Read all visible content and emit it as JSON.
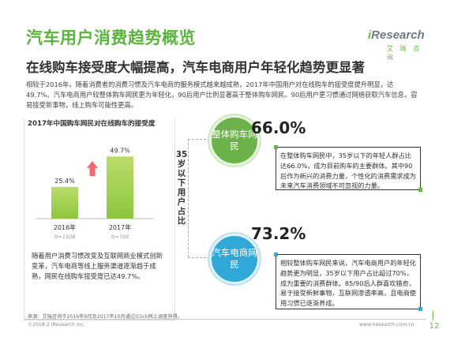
{
  "page_title": "汽车用户消费趋势概览",
  "logo": {
    "word_prefix": "i",
    "word_rest": "Research",
    "sub": "艾 瑞 咨 询"
  },
  "subtitle": "在线购车接受度大幅提高，汽车电商用户年轻化趋势更显著",
  "intro": "相较于2016年，随着消费者的消费习惯及汽车电商的服务模式越来越成熟，2017年中国用户对在线购车的接受度提升明显，达49.7%。汽车电商用户较整体购车网民更为年轻化，90后用户比例显著高于整体购车网民。90后用户更习惯通过网络获取汽车信息，容易接受新事物，线上购车可能性更高。",
  "chart_data": {
    "type": "bar",
    "title": "2017年中国购车网民对在线购车的接受度",
    "categories": [
      "2016年",
      "2017年"
    ],
    "values": [
      25.4,
      49.7
    ],
    "value_labels": [
      "25.4%",
      "49.7%"
    ],
    "sample_sizes": [
      "N=1508",
      "N=700"
    ],
    "ylim": [
      0,
      60
    ],
    "xlabel": "",
    "ylabel": "",
    "colors": {
      "bar_top": "#b9dc6a",
      "bar_bottom": "#8dc63f",
      "arrow": "#f06a6a",
      "axis": "#bbbbbb"
    }
  },
  "vertical_tag": "35岁以下用户占比",
  "chart_note": "随着用户消费习惯改变及互联网商业模式创新变革，汽车电商等线上服务渠道逐渐趋于成熟，网民在线购车接受度已达49.7%。",
  "segments": [
    {
      "circle_label": "整体购车网民",
      "percent": "66.0%",
      "description": "在整体购车网民中，35岁以下的年轻人群占比达66.0%，成为目前购车的主要群体。其中90后作为新兴的消费力量，个性化的消费需求成为未来汽车消费领域不可忽视的力量。",
      "color": "#6cb24a"
    },
    {
      "circle_label": "汽车电商网民",
      "percent": "73.2%",
      "description": "相较整体购车网民来说，汽车电商用户的年轻化趋势更为明显，35岁以下用户占比超过70%，成为重要的消费群体。85/90后人群喜欢猎奇，易于接受新鲜事物，互联网渗透率高，且电商使用习惯已逐渐养成。",
      "color": "#2fa8d8"
    }
  ],
  "source": "来源：艾瑞咨询于2016年9月及2017年10月通过iClick网上调查获得。",
  "copyright": "©2018.2  iResearch Inc.",
  "url": "www.iresearch.com.cn",
  "page_number": "12"
}
